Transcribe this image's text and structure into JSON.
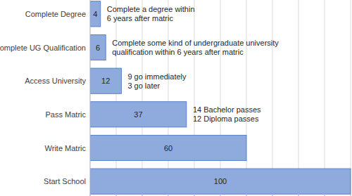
{
  "chart_data": {
    "type": "bar",
    "orientation": "horizontal",
    "categories": [
      "Complete Degree",
      "Complete UG Qualification",
      "Access University",
      "Pass Matric",
      "Write Matric",
      "Start School"
    ],
    "values": [
      4,
      6,
      12,
      37,
      60,
      100
    ],
    "annotations": [
      [
        "Complete a degree within",
        "6 years after matric"
      ],
      [
        "Complete some kind of undergraduate university",
        "qualification within 6 years after matric"
      ],
      [
        "9 go immediately",
        "3 go later"
      ],
      [
        "14 Bachelor passes",
        "12 Diploma passes"
      ],
      null,
      null
    ],
    "color": "#8faadc",
    "xlim": [
      0,
      100
    ],
    "xticks": [
      0,
      10,
      20,
      30,
      40,
      50,
      60,
      70,
      80,
      90,
      100
    ],
    "grid": true,
    "tick_labels": false,
    "data_labels": true
  }
}
